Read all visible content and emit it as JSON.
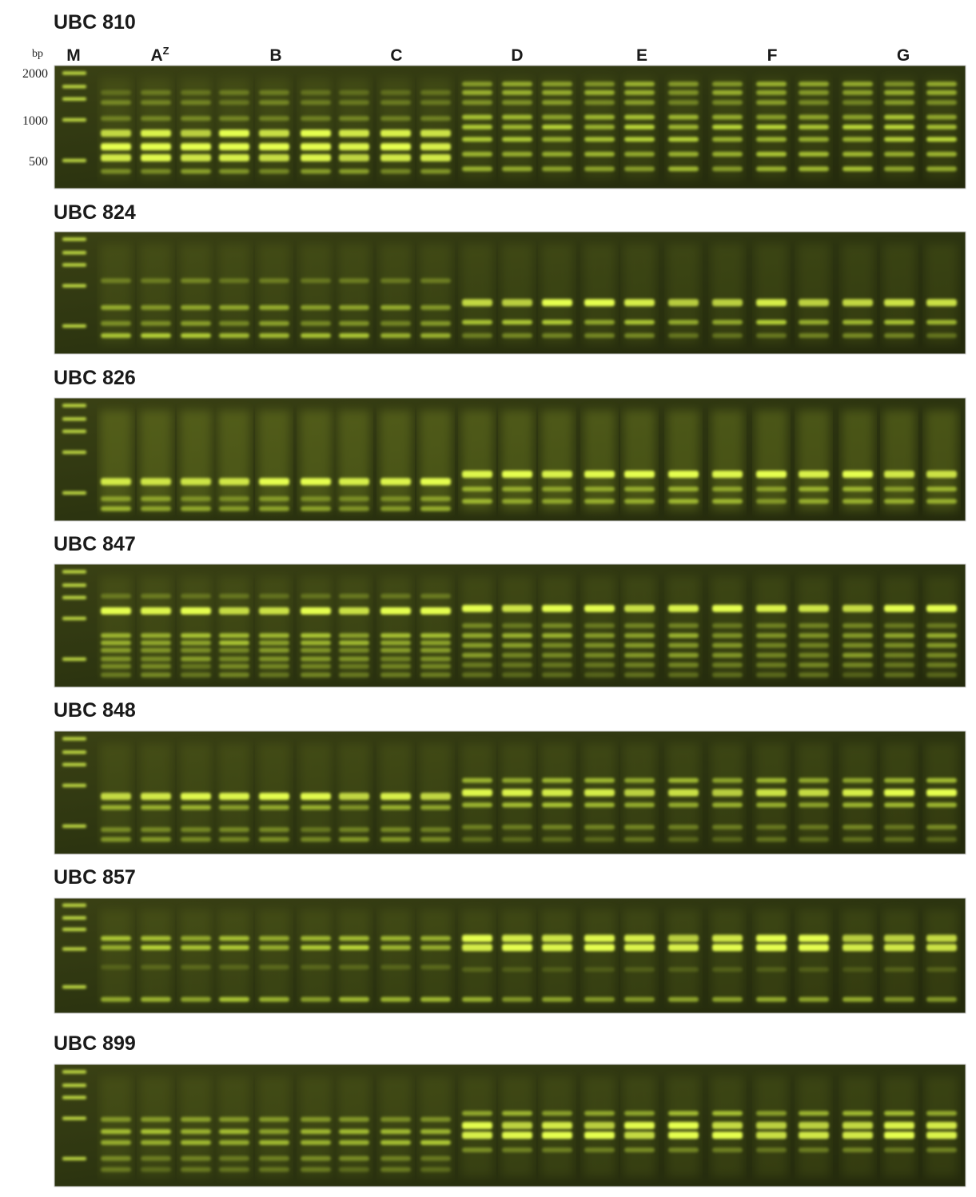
{
  "figure": {
    "bp_label": "bp",
    "sizes": [
      "2000",
      "1000",
      "500"
    ],
    "marker": "M",
    "groups": [
      {
        "label": "A",
        "sup": "Z"
      },
      {
        "label": "B"
      },
      {
        "label": "C"
      },
      {
        "label": "D"
      },
      {
        "label": "E"
      },
      {
        "label": "F"
      },
      {
        "label": "G"
      }
    ],
    "panels": [
      {
        "title": "UBC 810"
      },
      {
        "title": "UBC 824"
      },
      {
        "title": "UBC 826"
      },
      {
        "title": "UBC 847"
      },
      {
        "title": "UBC 848"
      },
      {
        "title": "UBC 857"
      },
      {
        "title": "UBC 899"
      }
    ]
  }
}
